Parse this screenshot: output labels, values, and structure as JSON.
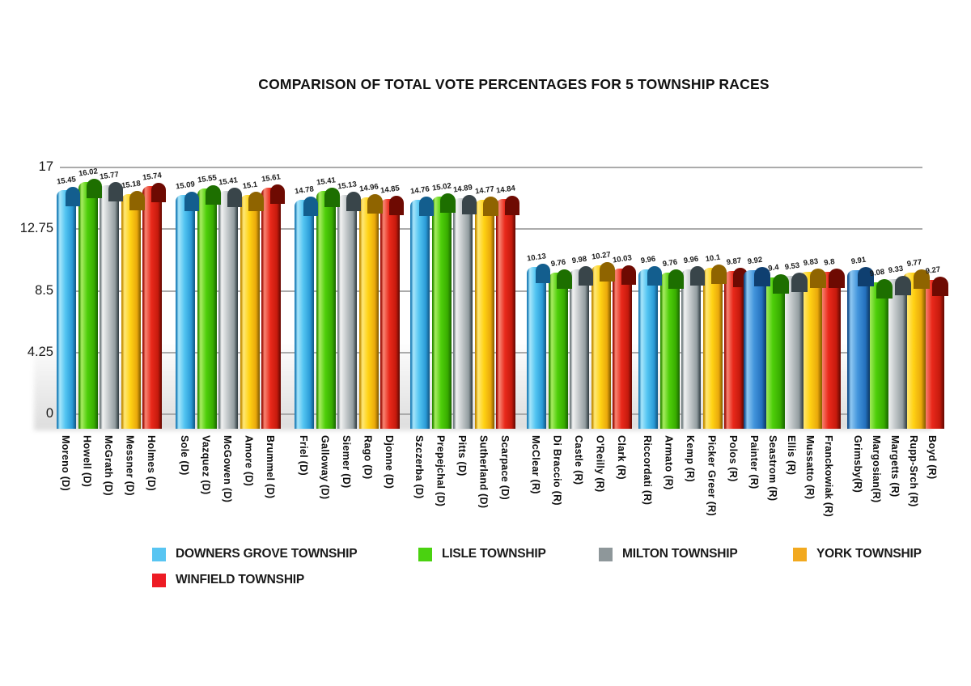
{
  "chart_data": {
    "type": "bar",
    "title": "COMPARISON OF TOTAL VOTE PERCENTAGES FOR 5 TOWNSHIP RACES",
    "xlabel": "",
    "ylabel": "",
    "ylim": [
      0,
      17
    ],
    "yticks": [
      17,
      12.75,
      8.5,
      4.25,
      0
    ],
    "grid": true,
    "legend_position": "bottom",
    "series": [
      {
        "name": "DOWNERS GROVE TOWNSHIP",
        "swatch": "#58C5F2",
        "bar": {
          "edge": "#1E7FB8",
          "hi": "#A8E6FB",
          "main": "#52C4F1",
          "shade": "#2B9BD7",
          "dark": "#135E8E"
        },
        "bar_alt": {
          "edge": "#16518F",
          "hi": "#8FC9F2",
          "main": "#4395DC",
          "shade": "#2471BE",
          "dark": "#0F3F70"
        }
      },
      {
        "name": "LISLE TOWNSHIP",
        "swatch": "#4AD210",
        "bar": {
          "edge": "#2E8F00",
          "hi": "#A9EC62",
          "main": "#4ECF0A",
          "shade": "#38AC00",
          "dark": "#1D6F00"
        }
      },
      {
        "name": "MILTON TOWNSHIP",
        "swatch": "#8E979A",
        "bar": {
          "edge": "#6F7B7E",
          "hi": "#F2F3F3",
          "main": "#C4C9CB",
          "shade": "#939DA0",
          "dark": "#39454A"
        }
      },
      {
        "name": "YORK TOWNSHIP",
        "swatch": "#F2A91F",
        "bar": {
          "edge": "#C58E00",
          "hi": "#FFE878",
          "main": "#FFD214",
          "shade": "#EAA90B",
          "dark": "#8F6400"
        }
      },
      {
        "name": "WINFIELD TOWNSHIP",
        "swatch": "#ED1C24",
        "bar": {
          "edge": "#9E0F06",
          "hi": "#F88774",
          "main": "#E9291B",
          "shade": "#C61A0D",
          "dark": "#6E0A02"
        }
      }
    ],
    "groups": [
      {
        "candidates": [
          "Moreno (D)",
          "Howell (D)",
          "McGrath (D)",
          "Messner (D)",
          "Holmes (D)"
        ],
        "values": [
          15.45,
          16.02,
          15.77,
          15.18,
          15.74
        ]
      },
      {
        "candidates": [
          "Sole (D)",
          "Vazquez (D)",
          "McGowen (D)",
          "Amore (D)",
          "Brummel (D)"
        ],
        "values": [
          15.09,
          15.55,
          15.41,
          15.1,
          15.61
        ]
      },
      {
        "candidates": [
          "Friel (D)",
          "Galloway (D)",
          "Siemer (D)",
          "Rago (D)",
          "Djonne (D)"
        ],
        "values": [
          14.78,
          15.41,
          15.13,
          14.96,
          14.85
        ]
      },
      {
        "candidates": [
          "Szczerba (D)",
          "Prepejchal (D)",
          "Pitts (D)",
          "Sutherland (D)",
          "Scarpace (D)"
        ],
        "values": [
          14.76,
          15.02,
          14.89,
          14.77,
          14.84
        ]
      },
      {
        "candidates": [
          "McClear (R)",
          "Di Braccio (R)",
          "Castle (R)",
          "O'Reilly (R)",
          "Clark (R)"
        ],
        "values": [
          10.13,
          9.76,
          9.98,
          10.27,
          10.03
        ]
      },
      {
        "candidates": [
          "Riccordati (R)",
          "Armato (R)",
          "Kemp (R)",
          "Picker Greer (R)",
          "Polos (R)"
        ],
        "values": [
          9.96,
          9.76,
          9.96,
          10.1,
          9.87
        ]
      },
      {
        "candidates": [
          "Painter (R)",
          "Seastrom (R)",
          "Ellis (R)",
          "Mussatto (R)",
          "Franckowiak (R)"
        ],
        "values": [
          9.92,
          9.4,
          9.53,
          9.83,
          9.8
        ]
      },
      {
        "candidates": [
          "Grimsby(R)",
          "Margosian(R)",
          "Margetts (R)",
          "Rupp-Srch (R)",
          "Boyd (R)"
        ],
        "values": [
          9.91,
          9.08,
          9.33,
          9.77,
          9.27
        ]
      }
    ]
  }
}
